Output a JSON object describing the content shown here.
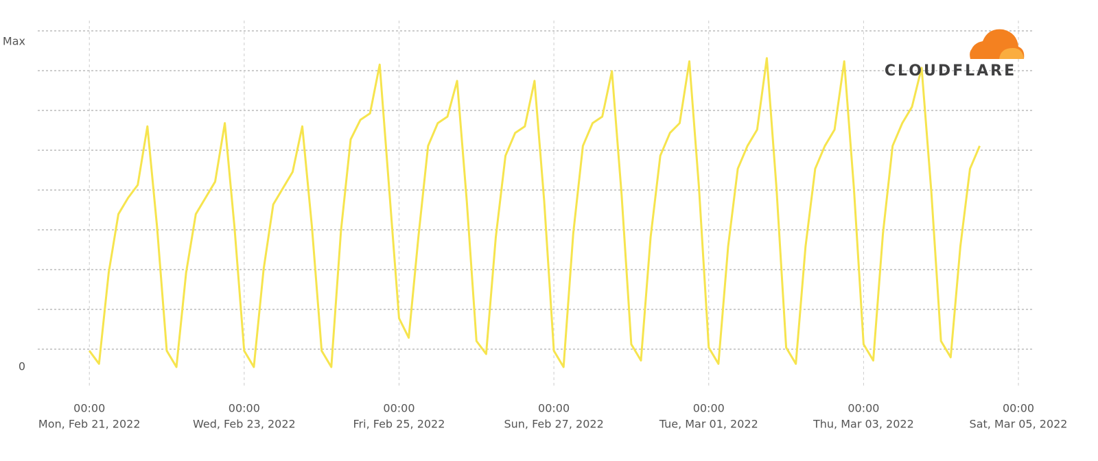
{
  "chart_data": {
    "type": "line",
    "logo": "CLOUDFLARE",
    "ylim": [
      0,
      100
    ],
    "yticks": [
      0,
      {
        "value": 100,
        "label": "Max"
      }
    ],
    "xlim": [
      "2022-02-20T08:00",
      "2022-03-05T04:15"
    ],
    "xticks": [
      {
        "value": "2022-02-21T00:00",
        "label": [
          "00:00",
          "Mon, Feb 21, 2022"
        ]
      },
      {
        "value": "2022-02-23T00:00",
        "label": [
          "00:00",
          "Wed, Feb 23, 2022"
        ]
      },
      {
        "value": "2022-02-25T00:00",
        "label": [
          "00:00",
          "Fri, Feb 25, 2022"
        ]
      },
      {
        "value": "2022-02-27T00:00",
        "label": [
          "00:00",
          "Sun, Feb 27, 2022"
        ]
      },
      {
        "value": "2022-03-01T00:00",
        "label": [
          "00:00",
          "Tue, Mar 01, 2022"
        ]
      },
      {
        "value": "2022-03-03T00:00",
        "label": [
          "00:00",
          "Thu, Mar 03, 2022"
        ]
      },
      {
        "value": "2022-03-05T00:00",
        "label": [
          "00:00",
          "Sat, Mar 05, 2022"
        ]
      }
    ],
    "grid": true,
    "x": [
      "2022-02-21T00:00",
      "2022-02-21T03:00",
      "2022-02-21T06:00",
      "2022-02-21T09:00",
      "2022-02-21T12:00",
      "2022-02-21T15:00",
      "2022-02-21T18:00",
      "2022-02-21T21:00",
      "2022-02-22T00:00",
      "2022-02-22T03:00",
      "2022-02-22T06:00",
      "2022-02-22T09:00",
      "2022-02-22T12:00",
      "2022-02-22T15:00",
      "2022-02-22T18:00",
      "2022-02-22T21:00",
      "2022-02-23T00:00",
      "2022-02-23T03:00",
      "2022-02-23T06:00",
      "2022-02-23T09:00",
      "2022-02-23T12:00",
      "2022-02-23T15:00",
      "2022-02-23T18:00",
      "2022-02-23T21:00",
      "2022-02-24T00:00",
      "2022-02-24T03:00",
      "2022-02-24T06:00",
      "2022-02-24T09:00",
      "2022-02-24T12:00",
      "2022-02-24T15:00",
      "2022-02-24T18:00",
      "2022-02-24T21:00",
      "2022-02-25T00:00",
      "2022-02-25T03:00",
      "2022-02-25T06:00",
      "2022-02-25T09:00",
      "2022-02-25T12:00",
      "2022-02-25T15:00",
      "2022-02-25T18:00",
      "2022-02-25T21:00",
      "2022-02-26T00:00",
      "2022-02-26T03:00",
      "2022-02-26T06:00",
      "2022-02-26T09:00",
      "2022-02-26T12:00",
      "2022-02-26T15:00",
      "2022-02-26T18:00",
      "2022-02-26T21:00",
      "2022-02-27T00:00",
      "2022-02-27T03:00",
      "2022-02-27T06:00",
      "2022-02-27T09:00",
      "2022-02-27T12:00",
      "2022-02-27T15:00",
      "2022-02-27T18:00",
      "2022-02-27T21:00",
      "2022-02-28T00:00",
      "2022-02-28T03:00",
      "2022-02-28T06:00",
      "2022-02-28T09:00",
      "2022-02-28T12:00",
      "2022-02-28T15:00",
      "2022-02-28T18:00",
      "2022-02-28T21:00",
      "2022-03-01T00:00",
      "2022-03-01T03:00",
      "2022-03-01T06:00",
      "2022-03-01T09:00",
      "2022-03-01T12:00",
      "2022-03-01T15:00",
      "2022-03-01T18:00",
      "2022-03-01T21:00",
      "2022-03-02T00:00",
      "2022-03-02T03:00",
      "2022-03-02T06:00",
      "2022-03-02T09:00",
      "2022-03-02T12:00",
      "2022-03-02T15:00",
      "2022-03-02T18:00",
      "2022-03-02T21:00",
      "2022-03-03T00:00",
      "2022-03-03T03:00",
      "2022-03-03T06:00",
      "2022-03-03T09:00",
      "2022-03-03T12:00",
      "2022-03-03T15:00",
      "2022-03-03T18:00",
      "2022-03-03T21:00",
      "2022-03-04T00:00",
      "2022-03-04T03:00",
      "2022-03-04T06:00",
      "2022-03-04T09:00",
      "2022-03-04T12:00"
    ],
    "series": [
      {
        "color": "#f6e44e",
        "values": [
          5,
          1,
          29,
          47,
          52,
          56,
          74,
          43,
          5,
          0,
          29,
          47,
          52,
          57,
          75,
          43,
          5,
          0,
          30,
          50,
          55,
          60,
          74,
          43,
          5,
          0,
          42,
          70,
          76,
          78,
          93,
          54,
          15,
          9,
          40,
          68,
          75,
          77,
          88,
          51,
          8,
          4,
          40,
          65,
          72,
          74,
          88,
          51,
          5,
          0,
          41,
          68,
          75,
          77,
          91,
          53,
          7,
          2,
          40,
          65,
          72,
          75,
          94,
          55,
          6,
          1,
          37,
          61,
          68,
          73,
          95,
          55,
          6,
          1,
          37,
          61,
          68,
          73,
          94,
          55,
          7,
          2,
          41,
          68,
          75,
          80,
          92,
          54,
          8,
          3,
          37,
          61,
          68
        ]
      }
    ]
  }
}
